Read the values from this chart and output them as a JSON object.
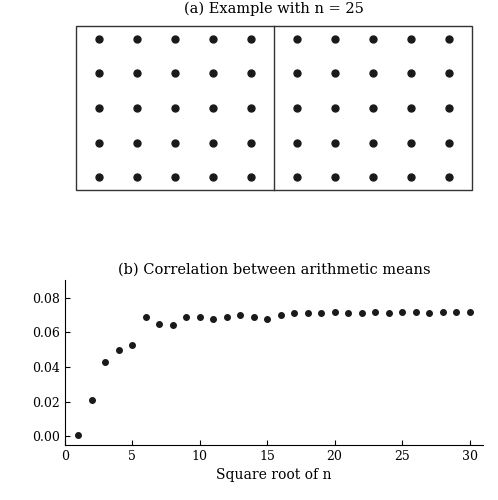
{
  "title_a": "(a) Example with n = 25",
  "title_b": "(b) Correlation between arithmetic means",
  "xlabel_b": "Square root of n",
  "dot_color": "#1a1a1a",
  "dot_size_panel_a": 5,
  "dot_size_panel_b": 4,
  "scatter_x": [
    1,
    2,
    3,
    4,
    5,
    6,
    7,
    8,
    9,
    10,
    11,
    12,
    13,
    14,
    15,
    16,
    17,
    18,
    19,
    20,
    21,
    22,
    23,
    24,
    25,
    26,
    27,
    28,
    29,
    30
  ],
  "scatter_y": [
    0.001,
    0.021,
    0.043,
    0.05,
    0.053,
    0.069,
    0.065,
    0.064,
    0.069,
    0.069,
    0.068,
    0.069,
    0.07,
    0.069,
    0.068,
    0.07,
    0.071,
    0.071,
    0.071,
    0.072,
    0.071,
    0.071,
    0.072,
    0.071,
    0.072,
    0.072,
    0.071,
    0.072,
    0.072,
    0.072
  ],
  "ylim_b": [
    -0.005,
    0.09
  ],
  "yticks_b": [
    0.0,
    0.02,
    0.04,
    0.06,
    0.08
  ],
  "xlim_b": [
    0,
    31
  ],
  "xticks_b": [
    0,
    5,
    10,
    15,
    20,
    25,
    30
  ],
  "background_color": "#ffffff",
  "panel_border_color": "#333333",
  "font_family": "DejaVu Serif"
}
